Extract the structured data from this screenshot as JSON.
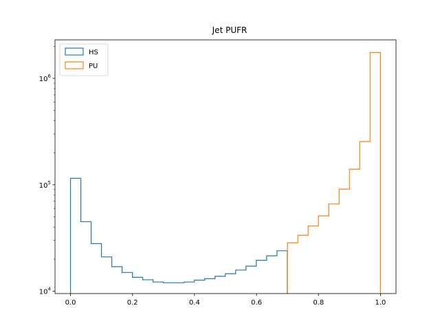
{
  "chart_data": {
    "type": "histogram",
    "title": "Jet PUFR",
    "xlabel": "",
    "ylabel": "",
    "xlim": [
      -0.05,
      1.05
    ],
    "ylim": [
      9500,
      2300000
    ],
    "yscale": "log",
    "x_ticks": [
      0.0,
      0.2,
      0.4,
      0.6,
      0.8,
      1.0
    ],
    "x_tick_labels": [
      "0.0",
      "0.2",
      "0.4",
      "0.6",
      "0.8",
      "1.0"
    ],
    "y_ticks": [
      10000,
      100000,
      1000000
    ],
    "y_tick_labels": [
      {
        "base": "10",
        "exp": "4"
      },
      {
        "base": "10",
        "exp": "5"
      },
      {
        "base": "10",
        "exp": "6"
      }
    ],
    "grid": false,
    "legend_position": "upper-left",
    "bin_width": 0.0333,
    "series": [
      {
        "name": "HS",
        "color": "#1f77b4",
        "bin_start": 0.0,
        "counts": [
          115000,
          45000,
          28000,
          21000,
          17000,
          15000,
          13500,
          12800,
          12200,
          12000,
          12000,
          12200,
          12700,
          13100,
          13800,
          14600,
          15800,
          17200,
          19500,
          21500,
          24000
        ]
      },
      {
        "name": "PU",
        "color": "#ff7f0e",
        "bin_start": 0.7,
        "counts": [
          28500,
          33500,
          41000,
          51000,
          66000,
          91000,
          140000,
          255000,
          1750000
        ]
      }
    ]
  }
}
